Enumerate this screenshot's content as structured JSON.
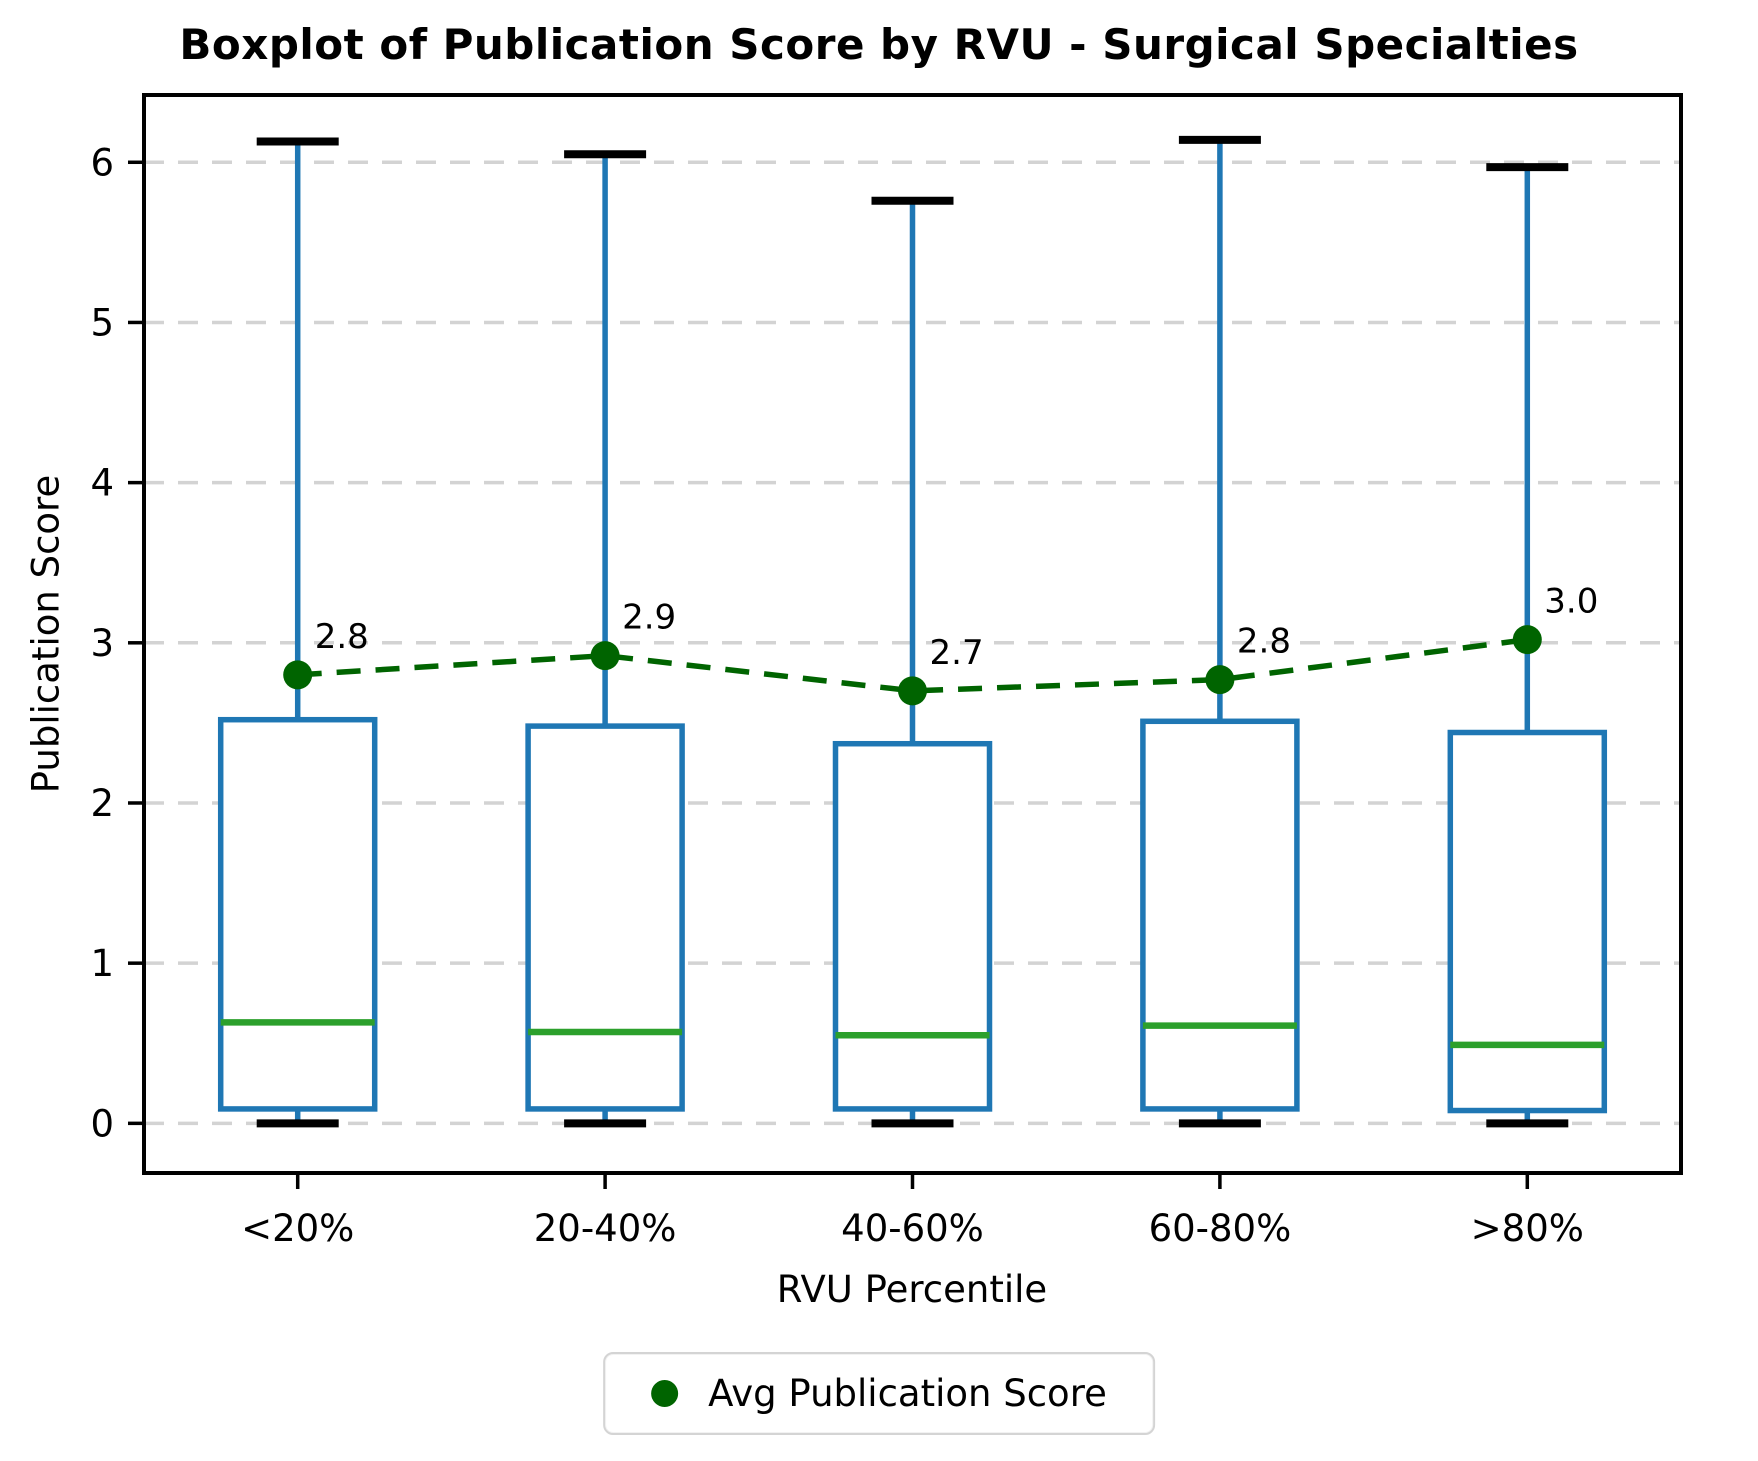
{
  "title": "Boxplot of Publication Score by RVU - Surgical Specialties",
  "chart_data": {
    "type": "boxplot",
    "title": "Boxplot of Publication Score by RVU - Surgical Specialties",
    "xlabel": "RVU Percentile",
    "ylabel": "Publication Score",
    "categories": [
      "<20%",
      "20-40%",
      "40-60%",
      "60-80%",
      ">80%"
    ],
    "yticks": [
      0,
      1,
      2,
      3,
      4,
      5,
      6
    ],
    "ylim": [
      -0.31,
      6.42
    ],
    "grid": "horizontal-dashed",
    "boxes": [
      {
        "category": "<20%",
        "whisker_low": 0.0,
        "q1": 0.09,
        "median": 0.63,
        "q3": 2.52,
        "whisker_high": 6.13,
        "mean": 2.8,
        "mean_label": "2.8"
      },
      {
        "category": "20-40%",
        "whisker_low": 0.0,
        "q1": 0.09,
        "median": 0.57,
        "q3": 2.48,
        "whisker_high": 6.05,
        "mean": 2.92,
        "mean_label": "2.9"
      },
      {
        "category": "40-60%",
        "whisker_low": 0.0,
        "q1": 0.09,
        "median": 0.55,
        "q3": 2.37,
        "whisker_high": 5.76,
        "mean": 2.7,
        "mean_label": "2.7"
      },
      {
        "category": "60-80%",
        "whisker_low": 0.0,
        "q1": 0.09,
        "median": 0.61,
        "q3": 2.51,
        "whisker_high": 6.14,
        "mean": 2.77,
        "mean_label": "2.8"
      },
      {
        "category": ">80%",
        "whisker_low": 0.0,
        "q1": 0.08,
        "median": 0.49,
        "q3": 2.44,
        "whisker_high": 5.97,
        "mean": 3.02,
        "mean_label": "3.0"
      }
    ],
    "mean_series": {
      "name": "Avg Publication Score",
      "values": [
        2.8,
        2.92,
        2.7,
        2.77,
        3.02
      ],
      "labels": [
        "2.8",
        "2.9",
        "2.7",
        "2.8",
        "3.0"
      ],
      "style": "dashed-line-with-dots"
    },
    "legend": {
      "label": "Avg Publication Score",
      "position": "bottom-center"
    },
    "colors": {
      "box": "#1f77b4",
      "median": "#2ca02c",
      "mean": "#006400",
      "caps": "#000000",
      "grid": "#d3d3d3",
      "spine": "#000000"
    }
  }
}
